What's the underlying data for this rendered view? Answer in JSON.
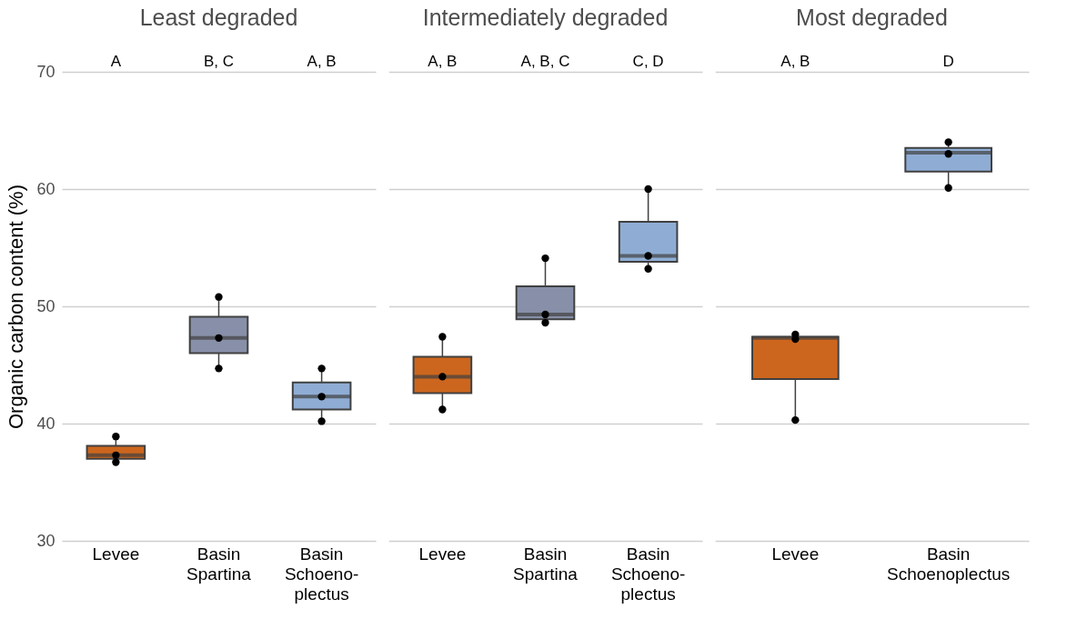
{
  "chart_data": [
    {
      "type": "box",
      "title": "Least degraded",
      "ylabel": "Organic carbon content (%)",
      "categories": [
        "Levee",
        "Basin Spartina",
        "Basin Schoeno- plectus"
      ],
      "colors": [
        "#cc661e",
        "#8790a8",
        "#8fadd4"
      ],
      "boxes": [
        {
          "low": 36.7,
          "q1": 37.0,
          "median": 37.3,
          "q3": 38.1,
          "high": 38.9
        },
        {
          "low": 44.7,
          "q1": 46.0,
          "median": 47.3,
          "q3": 49.1,
          "high": 50.8
        },
        {
          "low": 40.2,
          "q1": 41.2,
          "median": 42.3,
          "q3": 43.5,
          "high": 44.7
        }
      ],
      "series": [
        {
          "type": "scatter",
          "color": "#000000",
          "x": [
            "Levee",
            "Levee",
            "Levee",
            "Basin Spartina",
            "Basin Spartina",
            "Basin Spartina",
            "Basin Schoeno- plectus",
            "Basin Schoeno- plectus",
            "Basin Schoeno- plectus"
          ],
          "values": [
            38.9,
            37.3,
            36.7,
            50.8,
            47.3,
            44.7,
            44.7,
            42.3,
            40.2
          ]
        }
      ],
      "annotations": [
        "A",
        "B, C",
        "A, B"
      ],
      "ylim": [
        30,
        70
      ],
      "yticks": [
        30,
        40,
        50,
        60,
        70
      ],
      "grid": "y"
    },
    {
      "type": "box",
      "title": "Intermediately degraded",
      "categories": [
        "Levee",
        "Basin Spartina",
        "Basin Schoeno- plectus"
      ],
      "colors": [
        "#cc661e",
        "#8790a8",
        "#8fadd4"
      ],
      "boxes": [
        {
          "low": 41.2,
          "q1": 42.6,
          "median": 44.0,
          "q3": 45.7,
          "high": 47.4
        },
        {
          "low": 48.6,
          "q1": 48.9,
          "median": 49.3,
          "q3": 51.7,
          "high": 54.1
        },
        {
          "low": 53.2,
          "q1": 53.8,
          "median": 54.3,
          "q3": 57.2,
          "high": 60.0
        }
      ],
      "series": [
        {
          "type": "scatter",
          "color": "#000000",
          "x": [
            "Levee",
            "Levee",
            "Levee",
            "Basin Spartina",
            "Basin Spartina",
            "Basin Spartina",
            "Basin Schoeno- plectus",
            "Basin Schoeno- plectus",
            "Basin Schoeno- plectus"
          ],
          "values": [
            47.4,
            44.0,
            41.2,
            54.1,
            49.3,
            48.6,
            60.0,
            54.3,
            53.2
          ]
        }
      ],
      "annotations": [
        "A, B",
        "A, B, C",
        "C, D"
      ],
      "ylim": [
        30,
        70
      ],
      "yticks": [
        30,
        40,
        50,
        60,
        70
      ],
      "grid": "y",
      "tick_labels": "x"
    },
    {
      "type": "box",
      "title": "Most degraded",
      "categories": [
        "Levee",
        "Basin Schoenoplectus"
      ],
      "colors": [
        "#cc661e",
        "#8fadd4"
      ],
      "boxes": [
        {
          "low": 40.3,
          "q1": 43.8,
          "median": 47.3,
          "q3": 47.4,
          "high": 47.6
        },
        {
          "low": 60.1,
          "q1": 61.5,
          "median": 63.1,
          "q3": 63.5,
          "high": 64.0
        }
      ],
      "series": [
        {
          "type": "scatter",
          "color": "#000000",
          "x": [
            "Levee",
            "Levee",
            "Levee",
            "Basin Schoenoplectus",
            "Basin Schoenoplectus",
            "Basin Schoenoplectus"
          ],
          "values": [
            47.6,
            47.2,
            40.3,
            64.0,
            63.0,
            60.1
          ]
        }
      ],
      "annotations": [
        "A, B",
        "D"
      ],
      "ylim": [
        30,
        70
      ],
      "yticks": [
        30,
        40,
        50,
        60,
        70
      ],
      "grid": "y",
      "tick_labels": "x"
    }
  ]
}
